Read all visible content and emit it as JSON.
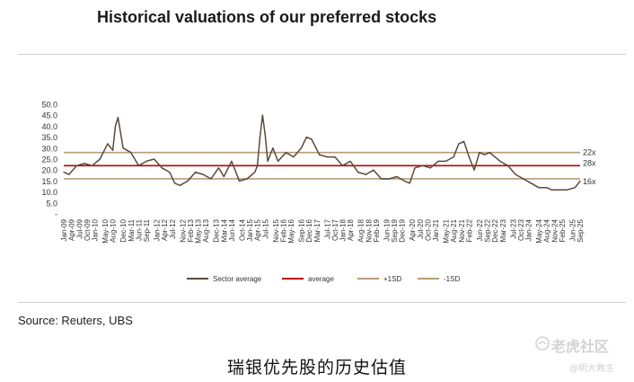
{
  "title": "Historical valuations of our preferred stocks",
  "source": "Source: Reuters, UBS",
  "caption": "瑞银优先股的历史估值",
  "watermark": {
    "main": "老虎社区",
    "sub": "@明大救主",
    "icon": "tiger-logo-icon"
  },
  "chart_data": {
    "type": "line",
    "title": "Historical valuations of our preferred stocks",
    "xlabel": "",
    "ylabel": "",
    "ylim": [
      0,
      50
    ],
    "y_ticks": [
      "-",
      "5.0",
      "10.0",
      "15.0",
      "20.0",
      "25.0",
      "30.0",
      "35.0",
      "40.0",
      "45.0",
      "50.0"
    ],
    "x_ticks": [
      "Jan-09",
      "Apr-09",
      "Jul-09",
      "Oct-09",
      "Jan-10",
      "May-10",
      "Aug-10",
      "Dec-10",
      "Mar-11",
      "Jun-11",
      "Sep-11",
      "Jan-12",
      "Apr-12",
      "Jul-12",
      "Nov-12",
      "Feb-13",
      "May-13",
      "Aug-13",
      "Dec-13",
      "Mar-14",
      "Jun-14",
      "Oct-14",
      "Jan-15",
      "Apr-15",
      "Jul-15",
      "Nov-15",
      "Feb-16",
      "May-16",
      "Sep-16",
      "Dec-16",
      "Mar-17",
      "Jul-17",
      "Oct-17",
      "Jan-18",
      "Apr-18",
      "Aug-18",
      "Nov-18",
      "Feb-19",
      "Jun-19",
      "Sep-19",
      "Dec-19",
      "Apr-20",
      "Jul-20",
      "Oct-20",
      "Jan-21",
      "May-21",
      "Aug-21",
      "Nov-21",
      "Feb-22",
      "Jun-22",
      "Sep-22",
      "Dec-22",
      "Mar-23",
      "Jul-23",
      "Oct-23",
      "Jan-24",
      "May-24",
      "Aug-24",
      "Nov-24",
      "Feb-25",
      "Jun-25",
      "Sep-25"
    ],
    "grid": false,
    "legend_position": "bottom",
    "series": [
      {
        "name": "Sector average",
        "color": "#5b4a3a",
        "x": [
          "Jan-09",
          "Mar-09",
          "Jun-09",
          "Sep-09",
          "Dec-09",
          "Mar-10",
          "Jun-10",
          "Aug-10",
          "Sep-10",
          "Oct-10",
          "Dec-10",
          "Mar-11",
          "Jun-11",
          "Sep-11",
          "Dec-11",
          "Mar-12",
          "Jun-12",
          "Aug-12",
          "Oct-12",
          "Jan-13",
          "Apr-13",
          "Jul-13",
          "Oct-13",
          "Jan-14",
          "Mar-14",
          "Jun-14",
          "Sep-14",
          "Dec-14",
          "Mar-15",
          "Apr-15",
          "May-15",
          "Jun-15",
          "Jul-15",
          "Aug-15",
          "Oct-15",
          "Dec-15",
          "Mar-16",
          "Jun-16",
          "Sep-16",
          "Nov-16",
          "Jan-17",
          "Apr-17",
          "Jul-17",
          "Oct-17",
          "Jan-18",
          "Apr-18",
          "Jul-18",
          "Oct-18",
          "Jan-19",
          "Apr-19",
          "Jul-19",
          "Oct-19",
          "Jan-20",
          "Mar-20",
          "May-20",
          "Aug-20",
          "Nov-20",
          "Feb-21",
          "May-21",
          "Aug-21",
          "Oct-21",
          "Dec-21",
          "Feb-22",
          "Apr-22",
          "Jun-22",
          "Aug-22",
          "Oct-22",
          "Dec-22",
          "Feb-23",
          "May-23",
          "Aug-23",
          "Nov-23",
          "Feb-24",
          "May-24",
          "Aug-24",
          "Oct-24",
          "Jan-25",
          "Apr-25",
          "Jul-25",
          "Sep-25"
        ],
        "values": [
          19,
          18,
          22,
          23,
          22,
          25,
          32,
          29,
          40,
          44,
          30,
          28,
          22,
          24,
          25,
          21,
          19,
          14,
          13,
          15,
          19,
          18,
          16,
          21,
          17,
          24,
          15,
          16,
          19,
          22,
          35,
          45,
          36,
          24,
          30,
          24,
          28,
          26,
          30,
          35,
          34,
          27,
          26,
          26,
          22,
          24,
          19,
          18,
          20,
          16,
          16,
          17,
          15,
          14,
          21,
          22,
          21,
          24,
          24,
          26,
          32,
          33,
          26,
          20,
          28,
          27,
          28,
          26,
          24,
          22,
          18,
          16,
          14,
          12,
          12,
          11,
          11,
          11,
          12,
          15
        ]
      },
      {
        "name": "average",
        "color": "#c00000",
        "values": [
          22
        ]
      },
      {
        "name": "+1SD",
        "color": "#b89b7a",
        "values": [
          28
        ]
      },
      {
        "name": "-1SD",
        "color": "#b89b7a",
        "values": [
          16
        ]
      }
    ],
    "annotations": [
      "28x",
      "22x",
      "16x"
    ]
  }
}
